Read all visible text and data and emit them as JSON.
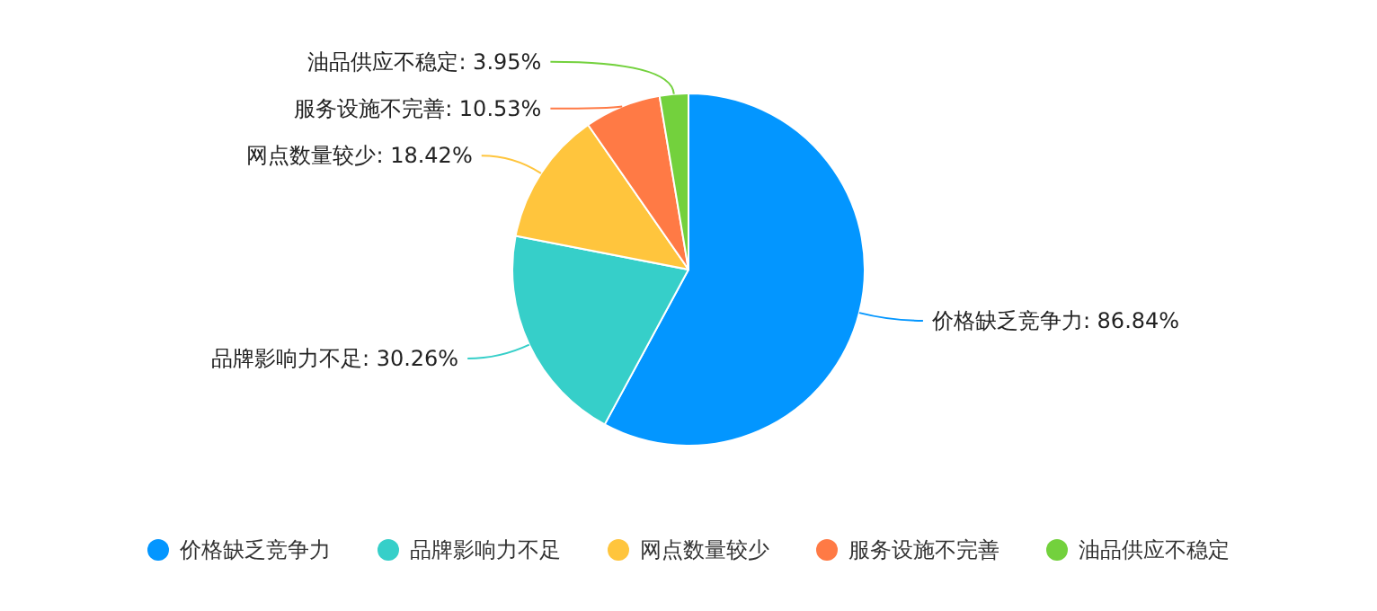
{
  "chart_data": {
    "type": "pie",
    "categories": [
      "价格缺乏竞争力",
      "品牌影响力不足",
      "网点数量较少",
      "服务设施不完善",
      "油品供应不稳定"
    ],
    "values": [
      86.84,
      30.26,
      18.42,
      10.53,
      3.95
    ],
    "value_labels": [
      "价格缺乏竞争力: 86.84%",
      "品牌影响力不足: 30.26%",
      "网点数量较少: 18.42%",
      "服务设施不完善: 10.53%",
      "油品供应不稳定: 3.95%"
    ],
    "colors": [
      "#0396ff",
      "#36cfc9",
      "#ffc53d",
      "#ff7a45",
      "#73d13d"
    ],
    "legend": "bottom"
  }
}
